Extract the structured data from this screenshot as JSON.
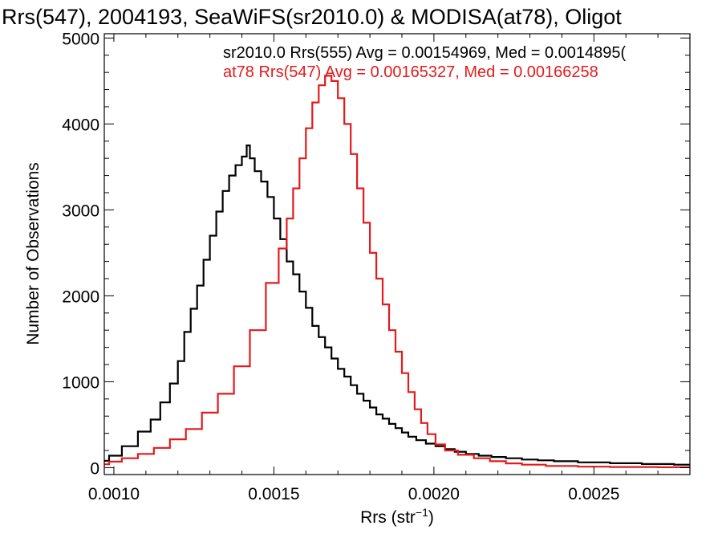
{
  "chart_data": {
    "type": "line",
    "title": "Rrs(547), 2004193, SeaWiFS(sr2010.0) & MODISA(at78), Oligot",
    "xlabel": "Rrs (str",
    "xlabel_sup": "−1",
    "xlabel_close": ")",
    "ylabel": "Number of Observations",
    "xlim": [
      0.00097,
      0.0028
    ],
    "ylim": [
      -80,
      5050
    ],
    "x_ticks": [
      {
        "value": 0.001,
        "label": "0.0010"
      },
      {
        "value": 0.0015,
        "label": "0.0015"
      },
      {
        "value": 0.002,
        "label": "0.0020"
      },
      {
        "value": 0.0025,
        "label": "0.0025"
      }
    ],
    "y_ticks": [
      {
        "value": 0,
        "label": "0"
      },
      {
        "value": 1000,
        "label": "1000"
      },
      {
        "value": 2000,
        "label": "2000"
      },
      {
        "value": 3000,
        "label": "3000"
      },
      {
        "value": 4000,
        "label": "4000"
      },
      {
        "value": 5000,
        "label": "5000"
      }
    ],
    "x_minor_step": 0.0001,
    "y_minor_step": 200,
    "grid": false,
    "legend_position": "top-right",
    "series": [
      {
        "legend": "sr2010.0 Rrs(555) Avg = 0.00154969, Med = 0.0014895(",
        "color": "#000000",
        "x": [
          0.00097,
          0.001,
          0.00105,
          0.0011,
          0.00113,
          0.00116,
          0.00119,
          0.00121,
          0.00123,
          0.00125,
          0.00127,
          0.00129,
          0.00131,
          0.00133,
          0.00135,
          0.00137,
          0.00139,
          0.00141,
          0.00142,
          0.00143,
          0.00145,
          0.00147,
          0.00149,
          0.00151,
          0.00153,
          0.00155,
          0.00157,
          0.00159,
          0.00161,
          0.00163,
          0.00165,
          0.00167,
          0.00169,
          0.00171,
          0.00173,
          0.00175,
          0.00177,
          0.00179,
          0.00181,
          0.00183,
          0.00185,
          0.00187,
          0.00189,
          0.00191,
          0.00193,
          0.00196,
          0.00199,
          0.00202,
          0.00205,
          0.00208,
          0.00212,
          0.00216,
          0.0022,
          0.00225,
          0.0023,
          0.00235,
          0.0024,
          0.0025,
          0.0026,
          0.0027,
          0.0028
        ],
        "y": [
          80,
          140,
          250,
          420,
          560,
          760,
          980,
          1240,
          1580,
          1850,
          2120,
          2420,
          2700,
          2980,
          3220,
          3400,
          3520,
          3620,
          3750,
          3600,
          3450,
          3330,
          3150,
          2900,
          2660,
          2400,
          2250,
          2050,
          1860,
          1650,
          1520,
          1400,
          1270,
          1150,
          1060,
          960,
          860,
          780,
          700,
          620,
          570,
          510,
          460,
          410,
          360,
          320,
          280,
          250,
          215,
          185,
          160,
          140,
          125,
          110,
          95,
          85,
          75,
          62,
          52,
          42,
          35
        ]
      },
      {
        "legend": "at78 Rrs(547) Avg = 0.00165327, Med = 0.00166258",
        "color": "#e41a1c",
        "x": [
          0.00097,
          0.001,
          0.00105,
          0.0011,
          0.00115,
          0.0012,
          0.00125,
          0.0013,
          0.00135,
          0.0014,
          0.00145,
          0.0015,
          0.00153,
          0.00155,
          0.00157,
          0.00159,
          0.00161,
          0.00163,
          0.00165,
          0.00167,
          0.00169,
          0.00171,
          0.00173,
          0.00175,
          0.00177,
          0.00179,
          0.00181,
          0.00183,
          0.00185,
          0.00187,
          0.00189,
          0.00191,
          0.00193,
          0.00195,
          0.00197,
          0.00199,
          0.00202,
          0.00205,
          0.0021,
          0.00215,
          0.0022,
          0.00225,
          0.0023,
          0.0024,
          0.0025,
          0.0026,
          0.0028
        ],
        "y": [
          40,
          70,
          110,
          160,
          230,
          330,
          450,
          640,
          860,
          1180,
          1600,
          2150,
          2550,
          2900,
          3250,
          3600,
          3950,
          4250,
          4450,
          4560,
          4500,
          4300,
          4000,
          3650,
          3250,
          2850,
          2500,
          2200,
          1900,
          1600,
          1350,
          1100,
          880,
          680,
          520,
          390,
          270,
          200,
          150,
          110,
          75,
          50,
          35,
          20,
          12,
          8,
          5
        ]
      }
    ]
  }
}
